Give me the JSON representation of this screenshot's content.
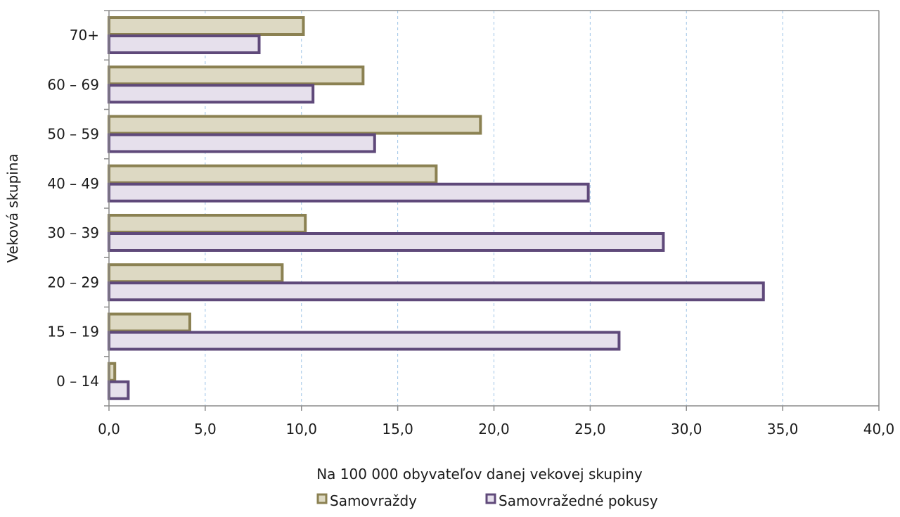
{
  "chart_data": {
    "type": "bar",
    "orientation": "horizontal",
    "categories": [
      "0 – 14",
      "15 – 19",
      "20 – 29",
      "30 – 39",
      "40 – 49",
      "50 – 59",
      "60 – 69",
      "70+"
    ],
    "series": [
      {
        "name": "Samovraždy",
        "values": [
          0.3,
          4.2,
          9.0,
          10.2,
          17.0,
          19.3,
          13.2,
          10.1
        ],
        "fill": "#ddd9c3",
        "stroke": "#8b8152"
      },
      {
        "name": "Samovražedné pokusy",
        "values": [
          1.0,
          26.5,
          34.0,
          28.8,
          24.9,
          13.8,
          10.6,
          7.8
        ],
        "fill": "#e6e0ec",
        "stroke": "#5f497a"
      }
    ],
    "xlabel": "Na 100 000 obyvateľov danej vekovej skupiny",
    "ylabel": "Veková skupina",
    "xlim": [
      0,
      40
    ],
    "xticks": [
      "0,0",
      "5,0",
      "10,0",
      "15,0",
      "20,0",
      "25,0",
      "30,0",
      "35,0",
      "40,0"
    ],
    "xtick_values": [
      0,
      5,
      10,
      15,
      20,
      25,
      30,
      35,
      40
    ],
    "grid": "vertical dashed",
    "legend_position": "bottom"
  }
}
